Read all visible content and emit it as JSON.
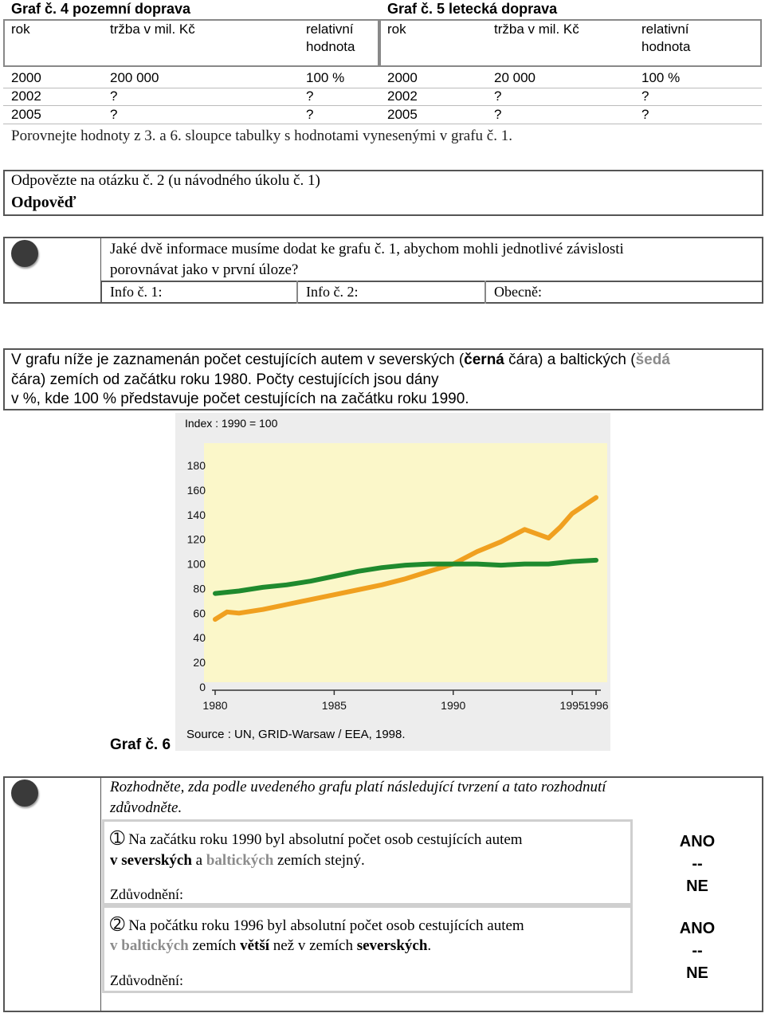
{
  "tables": {
    "left": {
      "title": "Graf č. 4 pozemní doprava",
      "headers": [
        "rok",
        "tržba v mil. Kč",
        "relativní",
        "hodnota"
      ],
      "rows": [
        [
          "2000",
          "200 000",
          "100 %"
        ],
        [
          "2002",
          "?",
          "?"
        ],
        [
          "2005",
          "?",
          "?"
        ]
      ]
    },
    "right": {
      "title": "Graf č. 5 letecká doprava",
      "headers": [
        "rok",
        "tržba v mil. Kč",
        "relativní",
        "hodnota"
      ],
      "rows": [
        [
          "2000",
          "20 000",
          "100 %"
        ],
        [
          "2002",
          "?",
          "?"
        ],
        [
          "2005",
          "?",
          "?"
        ]
      ]
    }
  },
  "compare_text": "Porovnejte hodnoty z 3. a 6. sloupce tabulky s hodnotami vynesenými v grafu č. 1.",
  "answer_box": {
    "question": "Odpovězte na otázku č. 2 (u návodného úkolu č. 1)",
    "answer_label": "Odpověď"
  },
  "task1": {
    "line1": "Jaké dvě informace musíme dodat ke grafu č. 1, abychom mohli jednotlivé závislosti",
    "line2": "porovnávat jako v první úloze?",
    "info1": "Info č. 1:",
    "info2": "Info č. 2:",
    "general": "Obecně:"
  },
  "intro": {
    "p1a": "V grafu níže je zaznamenán počet cestujících autem v severských (",
    "p1b": "černá",
    "p1c": " čára) a baltických (",
    "p1d": "šedá",
    "line2": "čára) zemích od začátku roku 1980. Počty cestujících jsou dány",
    "line3": "v %, kde  100 % představuje  počet cestujících na začátku roku 1990."
  },
  "graph_label": "Graf č. 6",
  "colors": {
    "orange": "#f0a020",
    "green": "#1f8a2e",
    "plot_bg": "#fbf7c9",
    "grey_text": "#8c8c8c"
  },
  "chart_data": {
    "type": "line",
    "title": "Index : 1990 = 100",
    "source": "Source : UN, GRID-Warsaw / EEA, 1998.",
    "ylim": [
      0,
      180
    ],
    "yticks": [
      0,
      20,
      40,
      60,
      80,
      100,
      120,
      140,
      160,
      180
    ],
    "xticks": [
      1980,
      1985,
      1990,
      1995,
      1996
    ],
    "series": [
      {
        "color": "orange",
        "x": [
          1980,
          1980.5,
          1981,
          1982,
          1983,
          1984,
          1985,
          1986,
          1987,
          1988,
          1989,
          1990,
          1991,
          1992,
          1993,
          1994,
          1994.5,
          1995,
          1996
        ],
        "y": [
          55,
          61,
          60,
          63,
          67,
          71,
          75,
          79,
          83,
          88,
          94,
          100,
          110,
          118,
          128,
          121,
          130,
          141,
          154
        ]
      },
      {
        "color": "green",
        "x": [
          1980,
          1981,
          1982,
          1983,
          1984,
          1985,
          1986,
          1987,
          1988,
          1989,
          1990,
          1991,
          1992,
          1993,
          1994,
          1995,
          1996
        ],
        "y": [
          76,
          78,
          81,
          83,
          86,
          90,
          94,
          97,
          99,
          100,
          100,
          100,
          99,
          100,
          100,
          102,
          103
        ]
      }
    ]
  },
  "task2": {
    "line1": "Rozhodněte, zda podle uvedeného grafu platí následující tvrzení a tato rozhodnutí",
    "line2": "zdůvodněte.",
    "s1": {
      "num": "➀",
      "a": " Na začátku roku 1990 byl absolutní počet osob cestujících autem",
      "b1": "v severských",
      "b2": " a ",
      "b3": "baltických",
      "b4": " zemích stejný.",
      "reason": "Zdůvodnění:"
    },
    "s2": {
      "num": "➁",
      "a": " Na počátku roku 1996 byl absolutní počet osob cestujících autem",
      "b1": "v baltických",
      "b2": " zemích ",
      "b3": "větší",
      "b4": " než v zemích ",
      "b5": "severských",
      "b6": ".",
      "reason": "Zdůvodnění:"
    },
    "answers": [
      "ANO",
      "--",
      "NE"
    ]
  }
}
